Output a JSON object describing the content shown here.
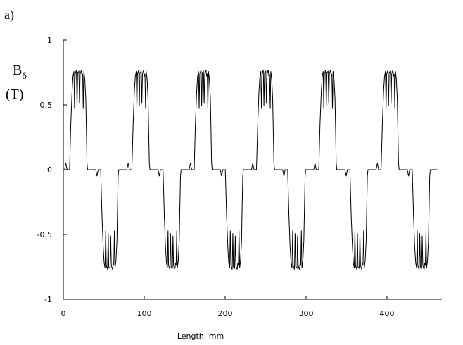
{
  "panel_label": "a)",
  "chart_data": {
    "type": "line",
    "title": "",
    "xlabel": "Length, mm",
    "ylabel_symbol": "B",
    "ylabel_subscript": "δ",
    "ylabel_unit": "(T)",
    "xlim": [
      0,
      462
    ],
    "ylim": [
      -1,
      1
    ],
    "xticks": [
      0,
      100,
      200,
      300,
      400
    ],
    "xtick_labels": [
      "0",
      "100",
      "200",
      "300",
      "400"
    ],
    "yticks": [
      1,
      0.5,
      0,
      -0.5,
      -1
    ],
    "ytick_labels": [
      "1",
      "0.5",
      "0",
      "-0.5",
      "-1"
    ],
    "grid": false,
    "series": [
      {
        "period_mm": 77,
        "phase_mm": 0,
        "plateau_level": 0.75,
        "slot_dip_level": 0.47,
        "step_level": 0,
        "num_periods": 6
      }
    ]
  }
}
